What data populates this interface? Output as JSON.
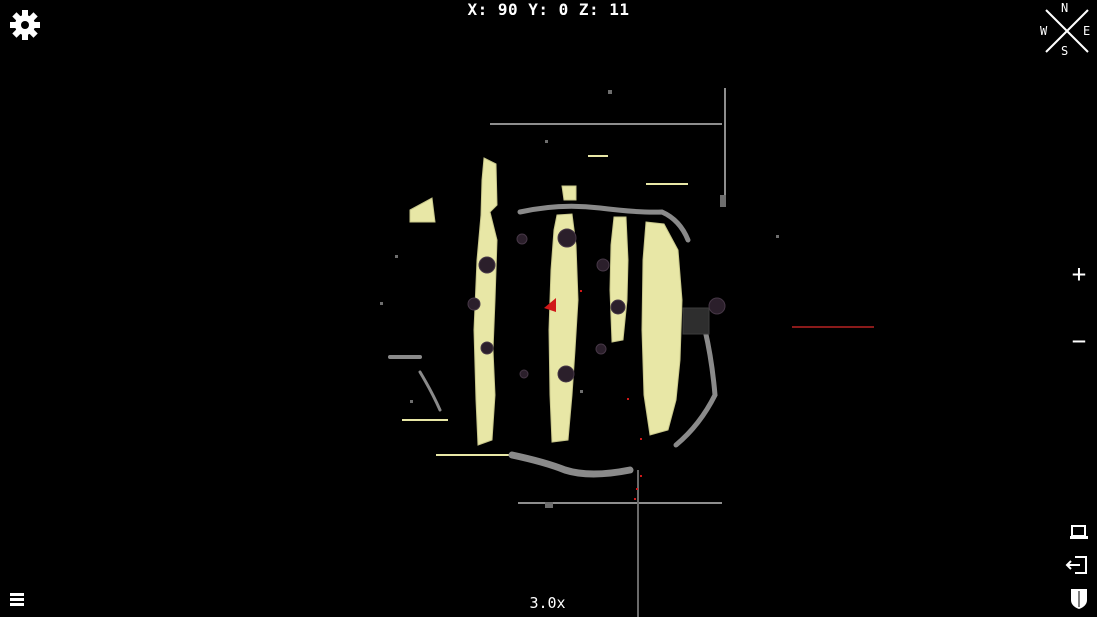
{
  "hud": {
    "coords": "X: 90 Y: 0 Z: 11",
    "zoom": "3.0x"
  },
  "compass": {
    "north": "N",
    "east": "E",
    "south": "S",
    "west": "W"
  },
  "controls": {
    "zoom_in": "+",
    "zoom_out": "−"
  },
  "colors": {
    "background": "#000000",
    "terrain": "#e8e7a6",
    "terrain_shadow": "#b6b47a",
    "structure": "#9a9a9a",
    "player_marker": "#d01818",
    "entity": "#2b1f2b"
  },
  "icons": {
    "settings": "gear-icon",
    "compass": "compass-icon",
    "window": "window-icon",
    "exit": "exit-icon",
    "shield": "shield-icon",
    "layers": "layers-icon"
  }
}
